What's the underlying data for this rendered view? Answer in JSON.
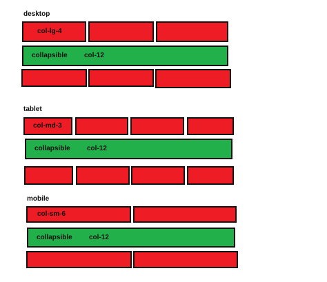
{
  "sections": {
    "desktop": {
      "label": "desktop",
      "first_box": "col-lg-4",
      "collapse_text": "collapsible",
      "collapse_col": "col-12"
    },
    "tablet": {
      "label": "tablet",
      "first_box": "col-md-3",
      "collapse_text": "collapsible",
      "collapse_col": "col-12"
    },
    "mobile": {
      "label": "mobile",
      "first_box": "col-sm-6",
      "collapse_text": "collapsible",
      "collapse_col": "col-12"
    }
  },
  "colors": {
    "column": "#ee1c24",
    "collapse": "#22b04b",
    "border": "#111111"
  }
}
